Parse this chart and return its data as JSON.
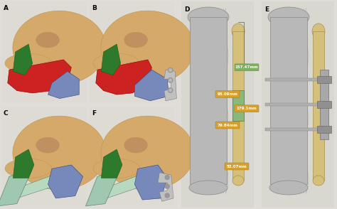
{
  "figure_width": 4.74,
  "figure_height": 2.94,
  "dpi": 100,
  "background_color": "#e0ddd8",
  "label_color": "#000000",
  "label_fontsize": 6.5,
  "skull_color": "#d4a96a",
  "skull_edge": "#b8954a",
  "red_region": "#cc2222",
  "green_region": "#2d7a2d",
  "blue_region": "#7788bb",
  "teal_fibula": "#a0c8b0",
  "teal_edge": "#608870",
  "bone_gray": "#b8b8b8",
  "bone_gray_edge": "#888888",
  "fibula_tan": "#d4c07a",
  "fibula_tan_edge": "#aa9050",
  "green_seg": "#8ab87a",
  "mbox_orange": "#d4a030",
  "mbox_green": "#7ab060",
  "mtext": "#ffffff",
  "measurements": {
    "top": "157.47mm",
    "mid1": "95.09mm",
    "mid2": "179.1mm",
    "mid3": "79.84mm",
    "bot": "52.07mm"
  },
  "panel_bg": "#dedad4"
}
